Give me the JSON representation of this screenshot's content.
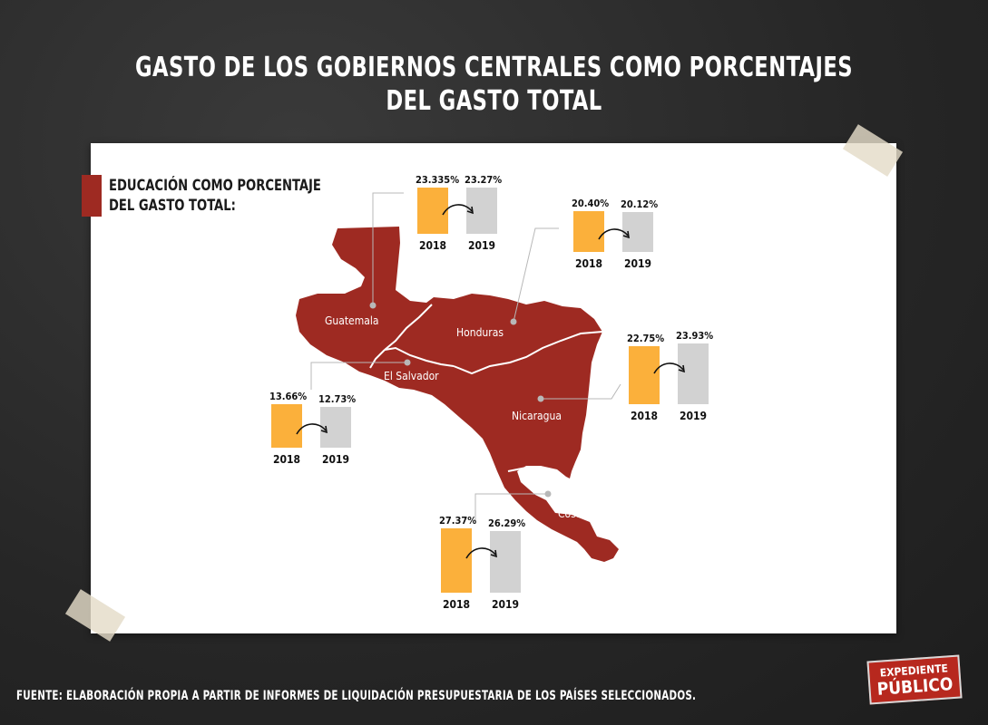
{
  "title": {
    "line1": "GASTO DE LOS GOBIERNOS CENTRALES COMO PORCENTAJES",
    "line2": "DEL GASTO TOTAL"
  },
  "legend": {
    "line1": "EDUCACIÓN COMO PORCENTAJE",
    "line2": "DEL GASTO TOTAL:",
    "color": "#9e2a22"
  },
  "colors": {
    "y2018": "#fbb03b",
    "y2019": "#d2d2d2",
    "map": "#9e2a22"
  },
  "countries": [
    {
      "name": "Guatemala",
      "y2018": 23.335,
      "y2019": 23.27,
      "label2018": "23.335%",
      "label2019": "23.27%"
    },
    {
      "name": "Honduras",
      "y2018": 20.4,
      "y2019": 20.12,
      "label2018": "20.40%",
      "label2019": "20.12%"
    },
    {
      "name": "El Salvador",
      "y2018": 13.66,
      "y2019": 12.73,
      "label2018": "13.66%",
      "label2019": "12.73%"
    },
    {
      "name": "Nicaragua",
      "y2018": 22.75,
      "y2019": 23.93,
      "label2018": "22.75%",
      "label2019": "23.93%"
    },
    {
      "name": "Costa Rica",
      "y2018": 27.37,
      "y2019": 26.29,
      "label2018": "27.37%",
      "label2019": "26.29%"
    }
  ],
  "years": [
    "2018",
    "2019"
  ],
  "footer": "FUENTE: ELABORACIÓN PROPIA A PARTIR DE INFORMES DE LIQUIDACIÓN PRESUPUESTARIA DE LOS PAÍSES SELECCIONADOS.",
  "logo": {
    "line1": "EXPEDIENTE",
    "line2": "PÚBLICO"
  },
  "chart_data": {
    "type": "bar",
    "title": "GASTO DE LOS GOBIERNOS CENTRALES COMO PORCENTAJES DEL GASTO TOTAL",
    "subtitle": "EDUCACIÓN COMO PORCENTAJE DEL GASTO TOTAL:",
    "categories": [
      "Guatemala",
      "Honduras",
      "El Salvador",
      "Nicaragua",
      "Costa Rica"
    ],
    "series": [
      {
        "name": "2018",
        "values": [
          23.335,
          20.4,
          13.66,
          22.75,
          27.37
        ]
      },
      {
        "name": "2019",
        "values": [
          23.27,
          20.12,
          12.73,
          23.93,
          26.29
        ]
      }
    ]
  }
}
